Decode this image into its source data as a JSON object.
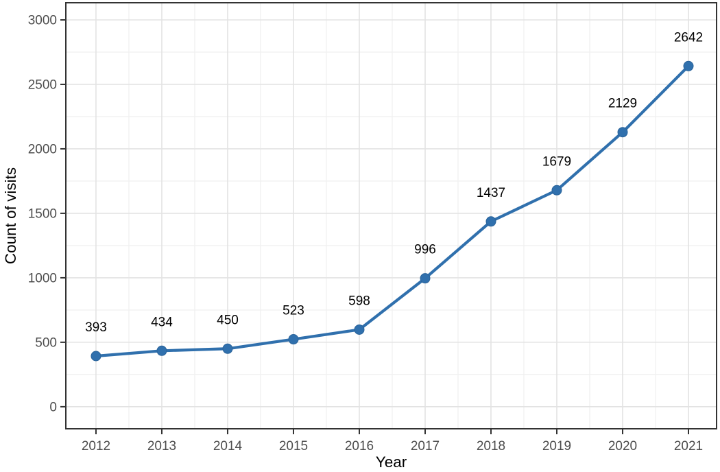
{
  "chart_data": {
    "type": "line",
    "title": "",
    "xlabel": "Year",
    "ylabel": "Count of visits",
    "x": [
      2012,
      2013,
      2014,
      2015,
      2016,
      2017,
      2018,
      2019,
      2020,
      2021
    ],
    "series": [
      {
        "name": "Count of visits",
        "values": [
          393,
          434,
          450,
          523,
          598,
          996,
          1437,
          1679,
          2129,
          2642
        ]
      }
    ],
    "point_labels": [
      "393",
      "434",
      "450",
      "523",
      "598",
      "996",
      "1437",
      "1679",
      "2129",
      "2642"
    ],
    "xlim": [
      2011.542,
      2021.427
    ],
    "ylim": [
      -171,
      3133
    ],
    "yticks": [
      0,
      500,
      1000,
      1500,
      2000,
      2500,
      3000
    ],
    "y_minor_ticks": [
      250,
      750,
      1250,
      1750,
      2250,
      2750
    ],
    "x_minor_step": 0.5,
    "grid": true,
    "legend_position": "none",
    "colors": {
      "line": "#3070ad",
      "point": "#3070ad",
      "point_edge": "#2a639a",
      "grid_major": "#e3e3e3",
      "grid_minor": "#f1f1f1",
      "panel_border": "#333333",
      "tick_mark": "#333333",
      "tick_label": "#4d4d4d",
      "axis_title": "#000000",
      "point_label": "#000000",
      "panel_background": "#ffffff"
    }
  }
}
